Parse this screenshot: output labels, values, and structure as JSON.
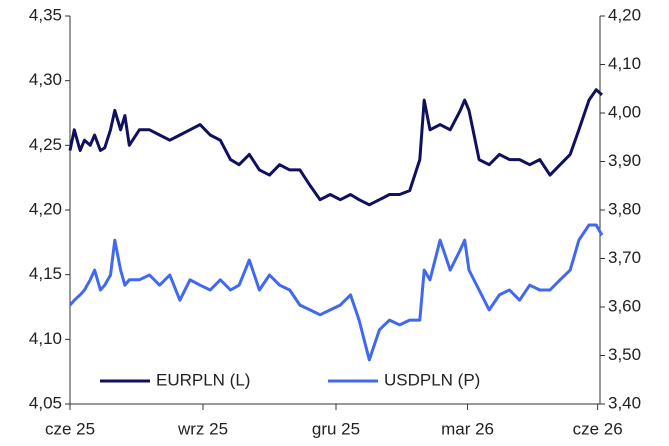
{
  "chart_data": {
    "type": "line",
    "x": [
      0,
      3,
      7,
      10,
      14,
      17,
      21,
      24,
      28,
      31,
      35,
      38,
      41,
      48,
      55,
      62,
      69,
      76,
      83,
      90,
      97,
      104,
      111,
      117,
      124,
      131,
      138,
      145,
      152,
      159,
      166,
      173,
      180,
      187,
      194,
      200,
      207,
      214,
      221,
      228,
      235,
      242,
      245,
      249,
      256,
      263,
      270,
      273,
      276,
      283,
      290,
      297,
      304,
      311,
      318,
      325,
      332,
      339,
      346,
      352,
      359,
      364,
      368
    ],
    "xlim": [
      0,
      368
    ],
    "xticks": [
      {
        "value": 0,
        "label": "cze 25"
      },
      {
        "value": 92,
        "label": "wrz 25"
      },
      {
        "value": 184,
        "label": "gru 25"
      },
      {
        "value": 275,
        "label": "mar 26"
      },
      {
        "value": 365,
        "label": "cze 26"
      }
    ],
    "ylim": [
      4.05,
      4.35
    ],
    "yticks": [
      {
        "value": 4.05,
        "label": "4,05"
      },
      {
        "value": 4.1,
        "label": "4,10"
      },
      {
        "value": 4.15,
        "label": "4,15"
      },
      {
        "value": 4.2,
        "label": "4,20"
      },
      {
        "value": 4.25,
        "label": "4,25"
      },
      {
        "value": 4.3,
        "label": "4,30"
      },
      {
        "value": 4.35,
        "label": "4,35"
      }
    ],
    "y2lim": [
      3.4,
      4.2
    ],
    "y2ticks": [
      {
        "value": 3.4,
        "label": "3,40"
      },
      {
        "value": 3.5,
        "label": "3,50"
      },
      {
        "value": 3.6,
        "label": "3,60"
      },
      {
        "value": 3.7,
        "label": "3,70"
      },
      {
        "value": 3.8,
        "label": "3,80"
      },
      {
        "value": 3.9,
        "label": "3,90"
      },
      {
        "value": 4.0,
        "label": "4,00"
      },
      {
        "value": 4.1,
        "label": "4,10"
      },
      {
        "value": 4.2,
        "label": "4,20"
      }
    ],
    "legend": "lower left",
    "series": [
      {
        "name": "EURPLN (L)",
        "color": "#10105e",
        "values": [
          4.246,
          4.262,
          4.246,
          4.254,
          4.25,
          4.258,
          4.246,
          4.248,
          4.262,
          4.277,
          4.262,
          4.273,
          4.25,
          4.262,
          4.262,
          4.258,
          4.254,
          4.258,
          4.262,
          4.266,
          4.258,
          4.254,
          4.239,
          4.235,
          4.243,
          4.231,
          4.227,
          4.235,
          4.231,
          4.231,
          4.219,
          4.208,
          4.212,
          4.208,
          4.212,
          4.208,
          4.204,
          4.208,
          4.212,
          4.212,
          4.215,
          4.239,
          4.285,
          4.262,
          4.266,
          4.262,
          4.277,
          4.285,
          4.277,
          4.239,
          4.235,
          4.243,
          4.239,
          4.239,
          4.235,
          4.239,
          4.227,
          4.235,
          4.243,
          4.262,
          4.285,
          4.293,
          4.289
        ]
      },
      {
        "name": "USDPLN (P)",
        "color": "#4169f0",
        "axis": "y2",
        "values": [
          3.604,
          3.614,
          3.625,
          3.635,
          3.656,
          3.676,
          3.635,
          3.645,
          3.666,
          3.738,
          3.676,
          3.645,
          3.656,
          3.656,
          3.666,
          3.645,
          3.666,
          3.614,
          3.656,
          3.645,
          3.635,
          3.656,
          3.635,
          3.645,
          3.697,
          3.635,
          3.666,
          3.645,
          3.635,
          3.604,
          3.594,
          3.584,
          3.594,
          3.604,
          3.625,
          3.573,
          3.491,
          3.553,
          3.573,
          3.563,
          3.573,
          3.573,
          3.676,
          3.656,
          3.738,
          3.676,
          3.718,
          3.738,
          3.676,
          3.635,
          3.594,
          3.625,
          3.635,
          3.614,
          3.645,
          3.635,
          3.635,
          3.656,
          3.676,
          3.738,
          3.769,
          3.769,
          3.748
        ]
      }
    ]
  }
}
